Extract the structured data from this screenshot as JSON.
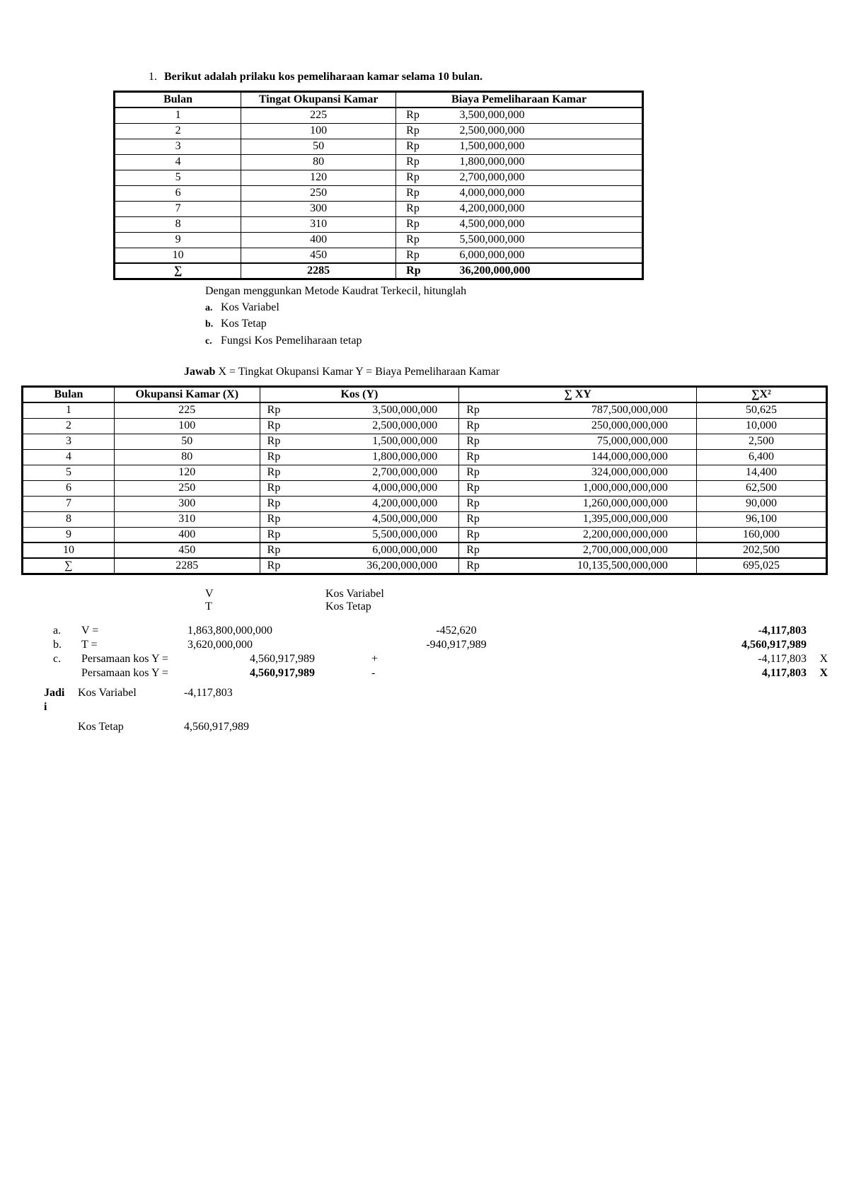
{
  "title_number": "1.",
  "title_text": "Berikut adalah prilaku kos pemeliharaan kamar selama 10 bulan",
  "table1": {
    "headers": {
      "bulan": "Bulan",
      "tingat": "Tingat Okupansi Kamar",
      "biaya": "Biaya Pemeliharaan Kamar"
    },
    "rp": "Rp",
    "rows": [
      {
        "bulan": "1",
        "tingat": "225",
        "biaya": "3,500,000,000"
      },
      {
        "bulan": "2",
        "tingat": "100",
        "biaya": "2,500,000,000"
      },
      {
        "bulan": "3",
        "tingat": "50",
        "biaya": "1,500,000,000"
      },
      {
        "bulan": "4",
        "tingat": "80",
        "biaya": "1,800,000,000"
      },
      {
        "bulan": "5",
        "tingat": "120",
        "biaya": "2,700,000,000"
      },
      {
        "bulan": "6",
        "tingat": "250",
        "biaya": "4,000,000,000"
      },
      {
        "bulan": "7",
        "tingat": "300",
        "biaya": "4,200,000,000"
      },
      {
        "bulan": "8",
        "tingat": "310",
        "biaya": "4,500,000,000"
      },
      {
        "bulan": "9",
        "tingat": "400",
        "biaya": "5,500,000,000"
      },
      {
        "bulan": "10",
        "tingat": "450",
        "biaya": "6,000,000,000"
      }
    ],
    "sum": {
      "sigma": "∑",
      "tingat": "2285",
      "biaya": "36,200,000,000"
    }
  },
  "under1": {
    "intro": "Dengan menggunkan Metode Kaudrat Terkecil, hitunglah",
    "a": "Kos Variabel",
    "b": "Kos Tetap",
    "c": "Fungsi Kos Pemeliharaan tetap"
  },
  "jawab": {
    "label": "Jawab",
    "text": " X = Tingkat Okupansi Kamar   Y = Biaya Pemeliharaan Kamar"
  },
  "table2": {
    "headers": {
      "bulan": "Bulan",
      "x": "Okupansi Kamar (X)",
      "y": "Kos (Y)",
      "xy": "∑ XY",
      "x2": "∑X²"
    },
    "rp": "Rp",
    "rows": [
      {
        "bulan": "1",
        "x": "225",
        "y": "3,500,000,000",
        "xy": "787,500,000,000",
        "x2": "50,625"
      },
      {
        "bulan": "2",
        "x": "100",
        "y": "2,500,000,000",
        "xy": "250,000,000,000",
        "x2": "10,000"
      },
      {
        "bulan": "3",
        "x": "50",
        "y": "1,500,000,000",
        "xy": "75,000,000,000",
        "x2": "2,500"
      },
      {
        "bulan": "4",
        "x": "80",
        "y": "1,800,000,000",
        "xy": "144,000,000,000",
        "x2": "6,400"
      },
      {
        "bulan": "5",
        "x": "120",
        "y": "2,700,000,000",
        "xy": "324,000,000,000",
        "x2": "14,400"
      },
      {
        "bulan": "6",
        "x": "250",
        "y": "4,000,000,000",
        "xy": "1,000,000,000,000",
        "x2": "62,500"
      },
      {
        "bulan": "7",
        "x": "300",
        "y": "4,200,000,000",
        "xy": "1,260,000,000,000",
        "x2": "90,000"
      },
      {
        "bulan": "8",
        "x": "310",
        "y": "4,500,000,000",
        "xy": "1,395,000,000,000",
        "x2": "96,100"
      },
      {
        "bulan": "9",
        "x": "400",
        "y": "5,500,000,000",
        "xy": "2,200,000,000,000",
        "x2": "160,000"
      }
    ],
    "row10": {
      "bulan": "10",
      "x": "450",
      "y": "6,000,000,000",
      "xy": "2,700,000,000,000",
      "x2": "202,500"
    },
    "sum": {
      "sigma": "∑",
      "x": "2285",
      "y": "36,200,000,000",
      "xy": "10,135,500,000,000",
      "x2": "695,025"
    }
  },
  "vt": {
    "v_sym": "V",
    "v_lbl": "Kos Variabel",
    "t_sym": "T",
    "t_lbl": "Kos Tetap"
  },
  "abc": {
    "a": {
      "l": "a.",
      "eq": "V =",
      "v1": "1,863,800,000,000",
      "v2": "-452,620",
      "v3": "-4,117,803"
    },
    "b": {
      "l": "b.",
      "eq": "T =",
      "v1": "3,620,000,000",
      "v2": "-940,917,989",
      "v3": "4,560,917,989"
    },
    "c1": {
      "l": "c.",
      "eq": "Persamaan kos Y =",
      "v1": "4,560,917,989",
      "v2": "+",
      "v3": "-4,117,803",
      "v4": "X"
    },
    "c2": {
      "l": "",
      "eq": "Persamaan kos Y =",
      "v1": "4,560,917,989",
      "v2": "-",
      "v3": "4,117,803",
      "v4": "X"
    }
  },
  "jadi": {
    "label": "Jadi",
    "r1": {
      "lbl": "Kos Variabel",
      "val": "-4,117,803"
    },
    "r2": {
      "lbl": "Kos Tetap",
      "val": "4,560,917,989"
    }
  }
}
